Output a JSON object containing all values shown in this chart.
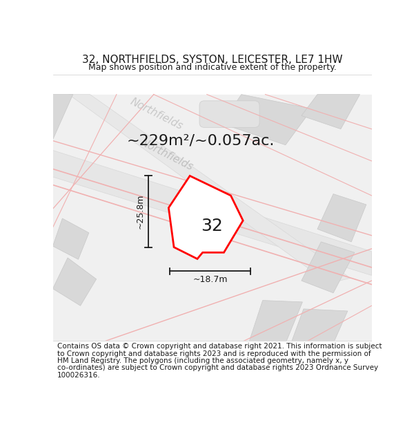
{
  "title": "32, NORTHFIELDS, SYSTON, LEICESTER, LE7 1HW",
  "subtitle": "Map shows position and indicative extent of the property.",
  "area_text": "~229m²/~0.057ac.",
  "width_label": "~18.7m",
  "height_label": "~25.8m",
  "plot_number": "32",
  "footer_lines": [
    "Contains OS data © Crown copyright and database right 2021. This information is subject",
    "to Crown copyright and database rights 2023 and is reproduced with the permission of",
    "HM Land Registry. The polygons (including the associated geometry, namely x, y",
    "co-ordinates) are subject to Crown copyright and database rights 2023 Ordnance Survey",
    "100026316."
  ],
  "bg_color": "#ffffff",
  "map_bg": "#f0f0f0",
  "block_color": "#d8d8d8",
  "block_edge": "#c8c8c8",
  "road_band_color": "#e4e4e4",
  "plot_fill": "#ffffff",
  "plot_outline": "#ff0000",
  "road_pink": "#f0b0b0",
  "dim_color": "#1a1a1a",
  "label_color": "#c0c0c0",
  "footer_fontsize": 7.5,
  "title_fontsize": 11,
  "subtitle_fontsize": 9,
  "area_fontsize": 16,
  "plot_label_fontsize": 18,
  "road_label_fontsize": 11
}
